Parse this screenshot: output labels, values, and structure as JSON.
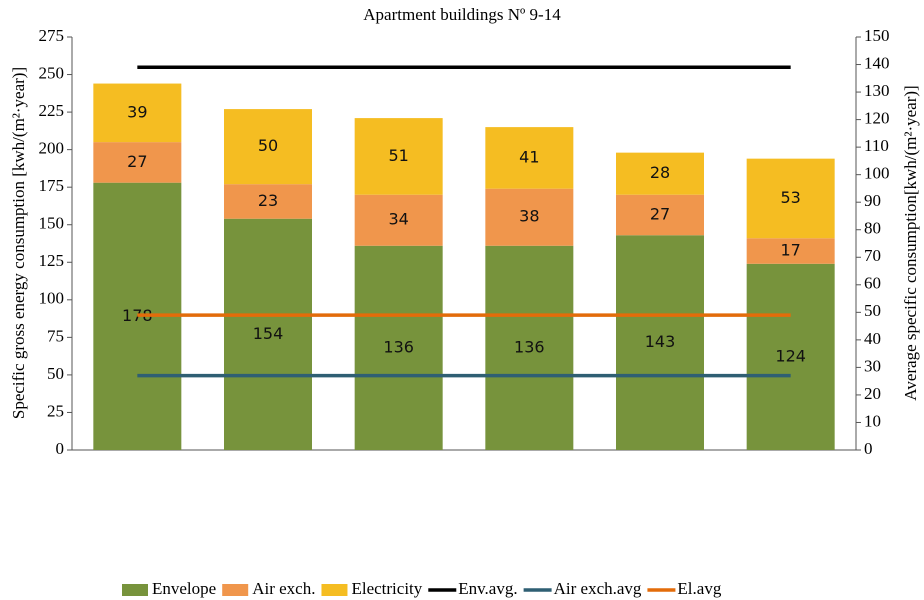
{
  "chart_data": {
    "type": "bar",
    "stacked": true,
    "title": "Apartment buildings Nº 9-14",
    "ylabel": "Specific gross energy consumption [kwh/(m²·year)]",
    "y2label": "Average specific consumption[kwh/(m²·year)]",
    "categories": [
      null,
      null,
      null,
      null,
      null,
      null
    ],
    "series": [
      {
        "name": "Envelope",
        "color": "#77933c",
        "values": [
          178,
          154,
          136,
          136,
          143,
          124
        ]
      },
      {
        "name": "Air exch.",
        "color": "#f0964c",
        "values": [
          27,
          23,
          34,
          38,
          27,
          17
        ]
      },
      {
        "name": "Electricity",
        "color": "#f5bd22",
        "values": [
          39,
          50,
          51,
          41,
          28,
          53
        ]
      },
      {
        "name": "Env.avg.",
        "type": "line",
        "axis": "y2",
        "color": "#000000",
        "values": [
          139,
          139,
          139,
          139,
          139,
          139
        ]
      },
      {
        "name": "Air exch.avg",
        "type": "line",
        "axis": "y2",
        "color": "#2f5f73",
        "values": [
          27,
          27,
          27,
          27,
          27,
          27
        ]
      },
      {
        "name": "El.avg",
        "type": "line",
        "axis": "y2",
        "color": "#e36c0a",
        "values": [
          49,
          49,
          49,
          49,
          49,
          49
        ]
      }
    ],
    "ylim": [
      0,
      275
    ],
    "yticks": [
      0,
      25,
      50,
      75,
      100,
      125,
      150,
      175,
      200,
      225,
      250,
      275
    ],
    "y2lim": [
      0,
      150
    ],
    "y2ticks": [
      0,
      10,
      20,
      30,
      40,
      50,
      60,
      70,
      80,
      90,
      100,
      110,
      120,
      130,
      140,
      150
    ],
    "legend": "bottom",
    "grid": false
  }
}
